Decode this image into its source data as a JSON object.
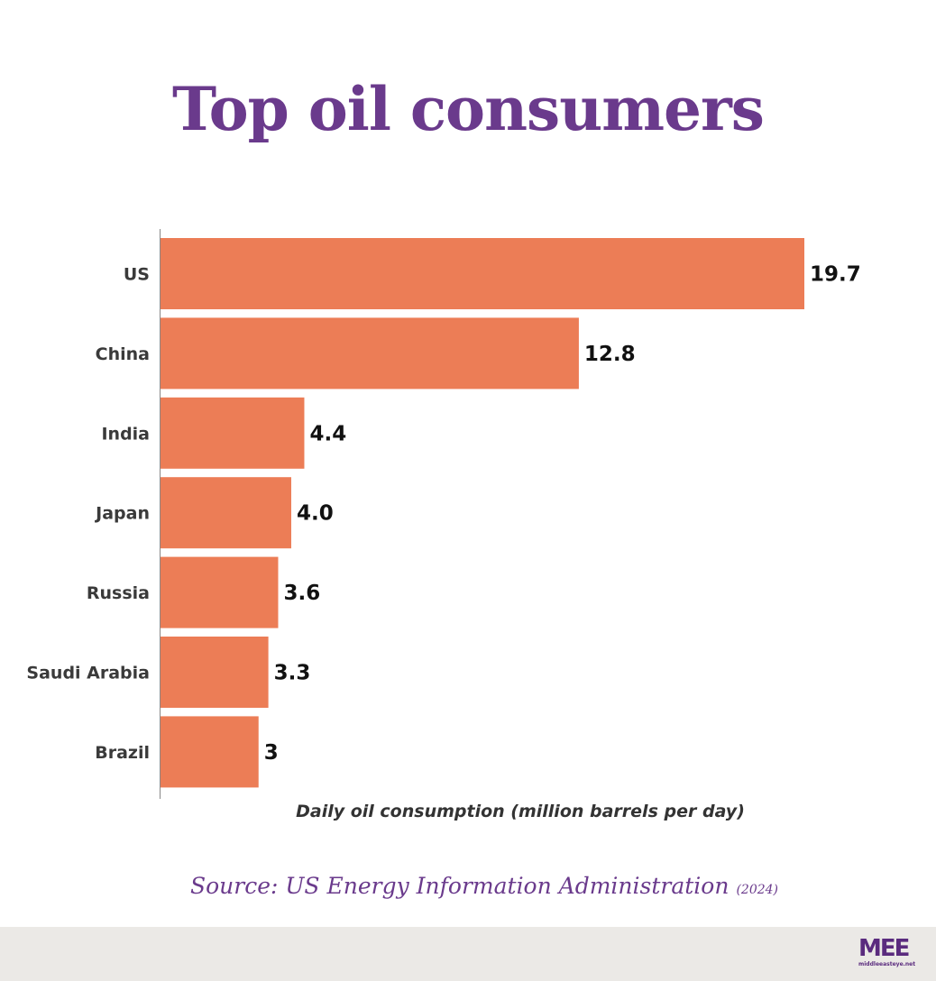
{
  "colors": {
    "title": "#6a3a8c",
    "bar": "#ec7d56",
    "source": "#6a3a8c",
    "logo": "#5a2b7e",
    "axis": "#888888"
  },
  "chart_data": {
    "type": "bar",
    "orientation": "horizontal",
    "title": "Top oil consumers",
    "xlabel": "Daily oil consumption (million barrels per day)",
    "categories": [
      "US",
      "China",
      "India",
      "Japan",
      "Russia",
      "Saudi Arabia",
      "Brazil"
    ],
    "values": [
      19.7,
      12.8,
      4.4,
      4.0,
      3.6,
      3.3,
      3
    ],
    "value_labels": [
      "19.7",
      "12.8",
      "4.4",
      "4.0",
      "3.6",
      "3.3",
      "3"
    ],
    "xlim": [
      0,
      19.7
    ],
    "grid": false,
    "legend": "none"
  },
  "source": {
    "text": "Source: US Energy Information Administration",
    "year": "(2024)"
  },
  "logo": {
    "mark": "MEE",
    "sub": "middleeasteye.net"
  }
}
